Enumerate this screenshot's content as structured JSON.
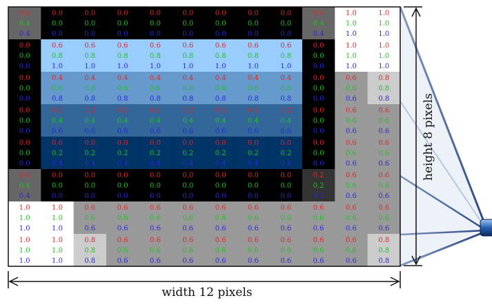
{
  "caption_width": "width 12 pixels",
  "caption_height": "height 8 pixels",
  "grid": {
    "columns": 12,
    "rows": 8,
    "channel_colors": {
      "r": "#e02828",
      "g": "#22c022",
      "b": "#2a2ad8"
    },
    "cells": [
      [
        [
          0.4,
          0.4,
          0.4
        ],
        [
          0,
          0,
          0
        ],
        [
          0,
          0,
          0
        ],
        [
          0,
          0,
          0
        ],
        [
          0,
          0,
          0
        ],
        [
          0,
          0,
          0
        ],
        [
          0,
          0,
          0
        ],
        [
          0,
          0,
          0
        ],
        [
          0,
          0,
          0
        ],
        [
          0.4,
          0.4,
          0.4
        ],
        [
          1,
          1,
          1
        ],
        [
          1,
          1,
          1
        ]
      ],
      [
        [
          0,
          0,
          0
        ],
        [
          0.6,
          0.8,
          1
        ],
        [
          0.6,
          0.8,
          1
        ],
        [
          0.6,
          0.8,
          1
        ],
        [
          0.6,
          0.8,
          1
        ],
        [
          0.6,
          0.8,
          1
        ],
        [
          0.6,
          0.8,
          1
        ],
        [
          0.6,
          0.8,
          1
        ],
        [
          0.6,
          0.8,
          1
        ],
        [
          0,
          0,
          0
        ],
        [
          1,
          1,
          1
        ],
        [
          1,
          1,
          1
        ]
      ],
      [
        [
          0,
          0,
          0
        ],
        [
          0.4,
          0.6,
          0.8
        ],
        [
          0.4,
          0.6,
          0.8
        ],
        [
          0.4,
          0.6,
          0.8
        ],
        [
          0.4,
          0.6,
          0.8
        ],
        [
          0.4,
          0.6,
          0.8
        ],
        [
          0.4,
          0.6,
          0.8
        ],
        [
          0.4,
          0.6,
          0.8
        ],
        [
          0.4,
          0.6,
          0.8
        ],
        [
          0,
          0,
          0
        ],
        [
          0.6,
          0.6,
          0.6
        ],
        [
          0.8,
          0.8,
          0.8
        ]
      ],
      [
        [
          0,
          0,
          0
        ],
        [
          0.2,
          0.4,
          0.6
        ],
        [
          0.2,
          0.4,
          0.6
        ],
        [
          0.2,
          0.4,
          0.6
        ],
        [
          0.2,
          0.4,
          0.6
        ],
        [
          0.2,
          0.4,
          0.6
        ],
        [
          0.2,
          0.4,
          0.6
        ],
        [
          0.2,
          0.4,
          0.6
        ],
        [
          0.2,
          0.4,
          0.6
        ],
        [
          0,
          0,
          0
        ],
        [
          0.6,
          0.6,
          0.6
        ],
        [
          0.6,
          0.6,
          0.6
        ]
      ],
      [
        [
          0,
          0,
          0
        ],
        [
          0,
          0.2,
          0.4
        ],
        [
          0,
          0.2,
          0.4
        ],
        [
          0,
          0.2,
          0.4
        ],
        [
          0,
          0.2,
          0.4
        ],
        [
          0,
          0.2,
          0.4
        ],
        [
          0,
          0.2,
          0.4
        ],
        [
          0,
          0.2,
          0.4
        ],
        [
          0,
          0.2,
          0.4
        ],
        [
          0,
          0,
          0
        ],
        [
          0.6,
          0.6,
          0.6
        ],
        [
          0.6,
          0.6,
          0.6
        ]
      ],
      [
        [
          0.4,
          0.4,
          0.4
        ],
        [
          0,
          0,
          0
        ],
        [
          0,
          0,
          0
        ],
        [
          0,
          0,
          0
        ],
        [
          0,
          0,
          0
        ],
        [
          0,
          0,
          0
        ],
        [
          0,
          0,
          0
        ],
        [
          0,
          0,
          0
        ],
        [
          0,
          0,
          0
        ],
        [
          0.2,
          0.2,
          0.2
        ],
        [
          0.6,
          0.6,
          0.6
        ],
        [
          0.6,
          0.6,
          0.6
        ]
      ],
      [
        [
          1,
          1,
          1
        ],
        [
          1,
          1,
          1
        ],
        [
          0.6,
          0.6,
          0.6
        ],
        [
          0.6,
          0.6,
          0.6
        ],
        [
          0.6,
          0.6,
          0.6
        ],
        [
          0.6,
          0.6,
          0.6
        ],
        [
          0.6,
          0.6,
          0.6
        ],
        [
          0.6,
          0.6,
          0.6
        ],
        [
          0.6,
          0.6,
          0.6
        ],
        [
          0.6,
          0.6,
          0.6
        ],
        [
          0.6,
          0.6,
          0.6
        ],
        [
          0.6,
          0.6,
          0.6
        ]
      ],
      [
        [
          1,
          1,
          1
        ],
        [
          1,
          1,
          1
        ],
        [
          0.8,
          0.8,
          0.8
        ],
        [
          0.6,
          0.6,
          0.6
        ],
        [
          0.6,
          0.6,
          0.6
        ],
        [
          0.6,
          0.6,
          0.6
        ],
        [
          0.6,
          0.6,
          0.6
        ],
        [
          0.6,
          0.6,
          0.6
        ],
        [
          0.6,
          0.6,
          0.6
        ],
        [
          0.6,
          0.6,
          0.6
        ],
        [
          0.6,
          0.6,
          0.6
        ],
        [
          0.8,
          0.8,
          0.8
        ]
      ]
    ]
  }
}
